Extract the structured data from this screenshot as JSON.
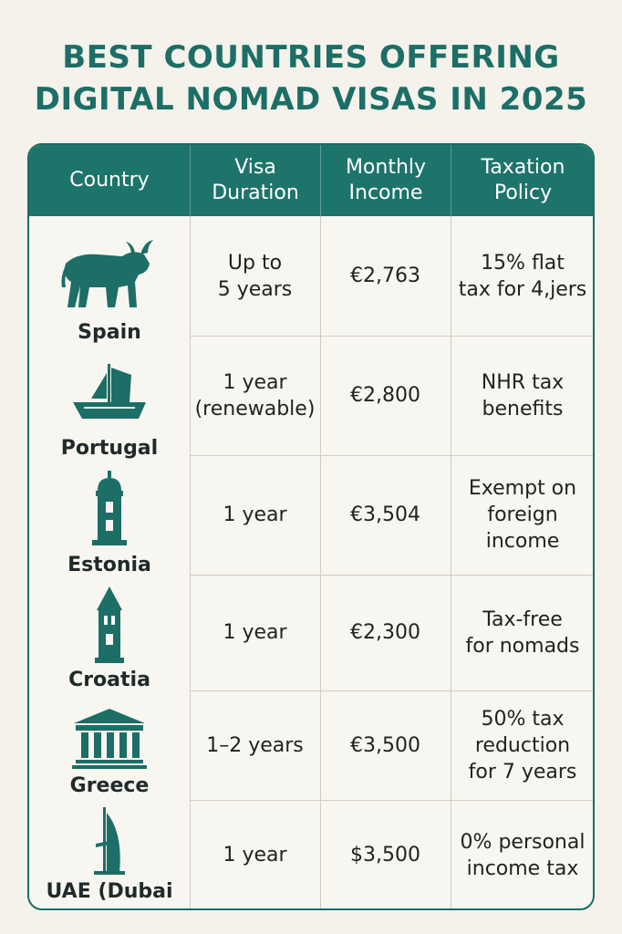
{
  "title": {
    "line1": "BEST COUNTRIES OFFERING",
    "line2": "DIGITAL NOMAD VISAS IN 2025"
  },
  "colors": {
    "accent": "#1d746b",
    "icon": "#1c6e66",
    "background": "#f4f2ea"
  },
  "table": {
    "headers": [
      "Country",
      "Visa\nDuration",
      "Monthly\nIncome",
      "Taxation\nPolicy"
    ],
    "rows": [
      {
        "country": "Spain",
        "icon": "bull-icon",
        "duration": "Up to\n5 years",
        "income": "€2,763",
        "tax": "15% flat\ntax for 4,jers"
      },
      {
        "country": "Portugal",
        "icon": "caravel-ship-icon",
        "duration": "1 year\n(renewable)",
        "income": "€2,800",
        "tax": "NHR tax\nbenefits"
      },
      {
        "country": "Estonia",
        "icon": "tower-icon",
        "duration": "1 year",
        "income": "€3,504",
        "tax": "Exempt on\nforeign\nincome"
      },
      {
        "country": "Croatia",
        "icon": "bell-tower-icon",
        "duration": "1 year",
        "income": "€2,300",
        "tax": "Tax-free\nfor nomads"
      },
      {
        "country": "Greece",
        "icon": "greek-temple-icon",
        "duration": "1–2 years",
        "income": "€3,500",
        "tax": "50% tax\nreduction\nfor 7 years"
      },
      {
        "country": "UAE (Dubai",
        "icon": "burj-al-arab-icon",
        "duration": "1 year",
        "income": "$3,500",
        "tax": "0% personal\nincome tax"
      }
    ]
  }
}
